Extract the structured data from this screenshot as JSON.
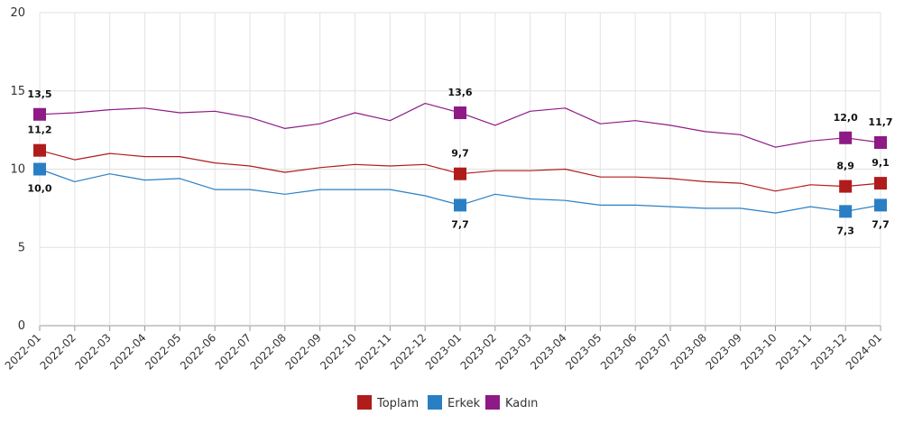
{
  "chart_data": {
    "type": "line",
    "title": "",
    "xlabel": "",
    "ylabel": "",
    "ylim": [
      0,
      20
    ],
    "yticks": [
      "0",
      "5",
      "10",
      "15",
      "20"
    ],
    "categories": [
      "2022-01",
      "2022-02",
      "2022-03",
      "2022-04",
      "2022-05",
      "2022-06",
      "2022-07",
      "2022-08",
      "2022-09",
      "2022-10",
      "2022-11",
      "2022-12",
      "2023-01",
      "2023-02",
      "2023-03",
      "2023-04",
      "2023-05",
      "2023-06",
      "2023-07",
      "2023-08",
      "2023-09",
      "2023-10",
      "2023-11",
      "2023-12",
      "2024-01"
    ],
    "series": [
      {
        "name": "Toplam",
        "color": "#b01c1c",
        "values": [
          11.2,
          10.6,
          11.0,
          10.8,
          10.8,
          10.4,
          10.2,
          9.8,
          10.1,
          10.3,
          10.2,
          10.3,
          9.7,
          9.9,
          9.9,
          10.0,
          9.5,
          9.5,
          9.4,
          9.2,
          9.1,
          8.6,
          9.0,
          8.9,
          9.1
        ],
        "markers": [
          {
            "index": 0,
            "label": "11,2",
            "pos": "above"
          },
          {
            "index": 12,
            "label": "9,7",
            "pos": "above"
          },
          {
            "index": 23,
            "label": "8,9",
            "pos": "above"
          },
          {
            "index": 24,
            "label": "9,1",
            "pos": "above"
          }
        ]
      },
      {
        "name": "Erkek",
        "color": "#2a7fc4",
        "values": [
          10.0,
          9.2,
          9.7,
          9.3,
          9.4,
          8.7,
          8.7,
          8.4,
          8.7,
          8.7,
          8.7,
          8.3,
          7.7,
          8.4,
          8.1,
          8.0,
          7.7,
          7.7,
          7.6,
          7.5,
          7.5,
          7.2,
          7.6,
          7.3,
          7.7
        ],
        "markers": [
          {
            "index": 0,
            "label": "10,0",
            "pos": "below"
          },
          {
            "index": 12,
            "label": "7,7",
            "pos": "below"
          },
          {
            "index": 23,
            "label": "7,3",
            "pos": "below"
          },
          {
            "index": 24,
            "label": "7,7",
            "pos": "below"
          }
        ]
      },
      {
        "name": "Kadın",
        "color": "#8e1a86",
        "values": [
          13.5,
          13.6,
          13.8,
          13.9,
          13.6,
          13.7,
          13.3,
          12.6,
          12.9,
          13.6,
          13.1,
          14.2,
          13.6,
          12.8,
          13.7,
          13.9,
          12.9,
          13.1,
          12.8,
          12.4,
          12.2,
          11.4,
          11.8,
          12.0,
          11.7
        ],
        "markers": [
          {
            "index": 0,
            "label": "13,5",
            "pos": "above"
          },
          {
            "index": 12,
            "label": "13,6",
            "pos": "above"
          },
          {
            "index": 23,
            "label": "12,0",
            "pos": "above"
          },
          {
            "index": 24,
            "label": "11,7",
            "pos": "above"
          }
        ]
      }
    ],
    "legend": "bottom-center",
    "grid": true
  }
}
